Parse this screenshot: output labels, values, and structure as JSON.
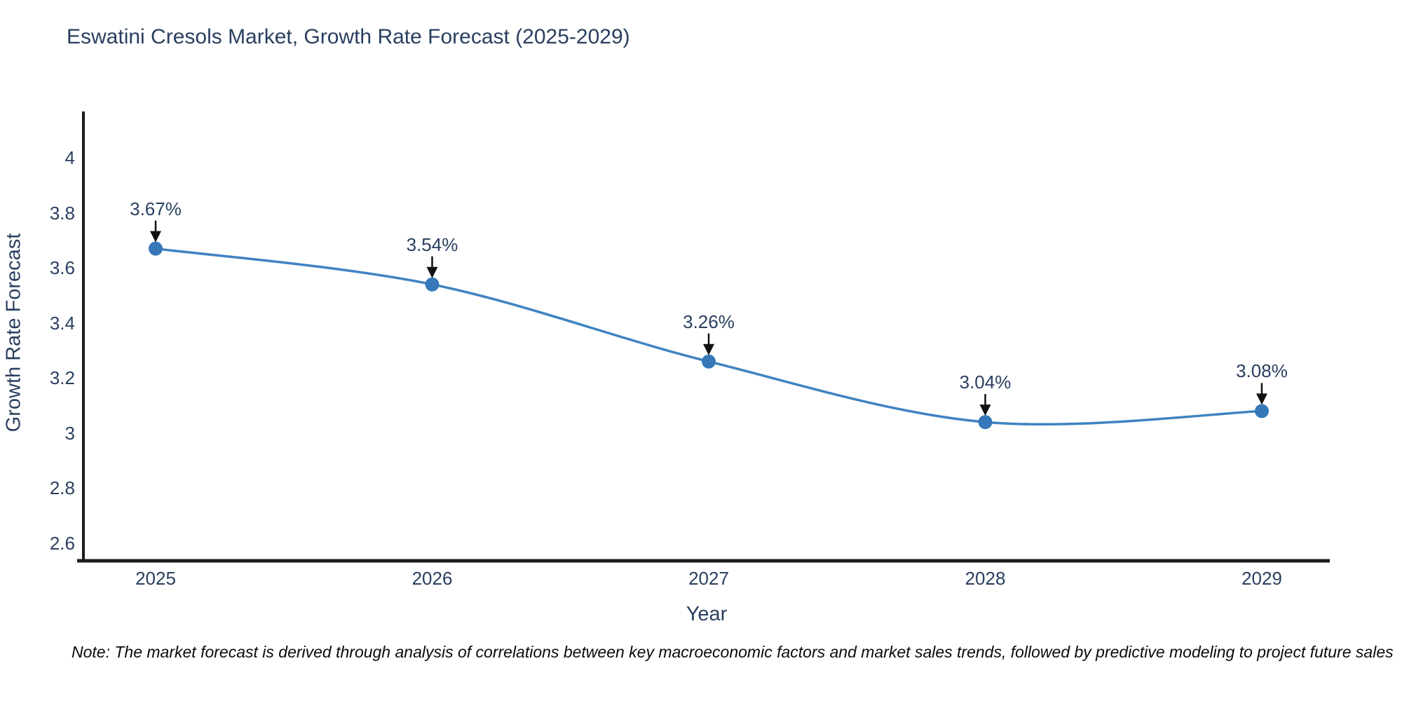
{
  "title": "Eswatini Cresols Market, Growth Rate Forecast (2025-2029)",
  "note": "Note: The market forecast is derived through analysis of correlations between key macroeconomic factors and market sales trends, followed by predictive modeling to project future sales",
  "chart_data": {
    "type": "line",
    "line_shape": "spline",
    "title": "Eswatini Cresols Market, Growth Rate Forecast (2025-2029)",
    "xlabel": "Year",
    "ylabel": "Growth Rate Forecast",
    "x": [
      2025,
      2026,
      2027,
      2028,
      2029
    ],
    "series": [
      {
        "name": "Growth Rate Forecast",
        "values": [
          3.67,
          3.54,
          3.26,
          3.04,
          3.08
        ],
        "point_labels": [
          "3.67%",
          "3.54%",
          "3.26%",
          "3.04%",
          "3.08%"
        ]
      }
    ],
    "xtick_labels": [
      "2025",
      "2026",
      "2027",
      "2028",
      "2029"
    ],
    "yticks": [
      2.6,
      2.8,
      3,
      3.2,
      3.4,
      3.6,
      3.8,
      4
    ],
    "ytick_labels": [
      "2.6",
      "2.8",
      "3",
      "3.2",
      "3.4",
      "3.6",
      "3.8",
      "4"
    ],
    "ylim": [
      2.54,
      4.17
    ],
    "grid": false,
    "legend_position": "none",
    "annotations": "arrow-down-to-each-point"
  },
  "colors": {
    "background": "#ffffff",
    "title_text": "#2a3f5f",
    "tick_text": "#2a3f5f",
    "axis_line": "#1c1c1c",
    "line": "#3f83c1",
    "marker": "#3678b8",
    "arrow": "#111111",
    "note_text": "#0b0b0b"
  }
}
